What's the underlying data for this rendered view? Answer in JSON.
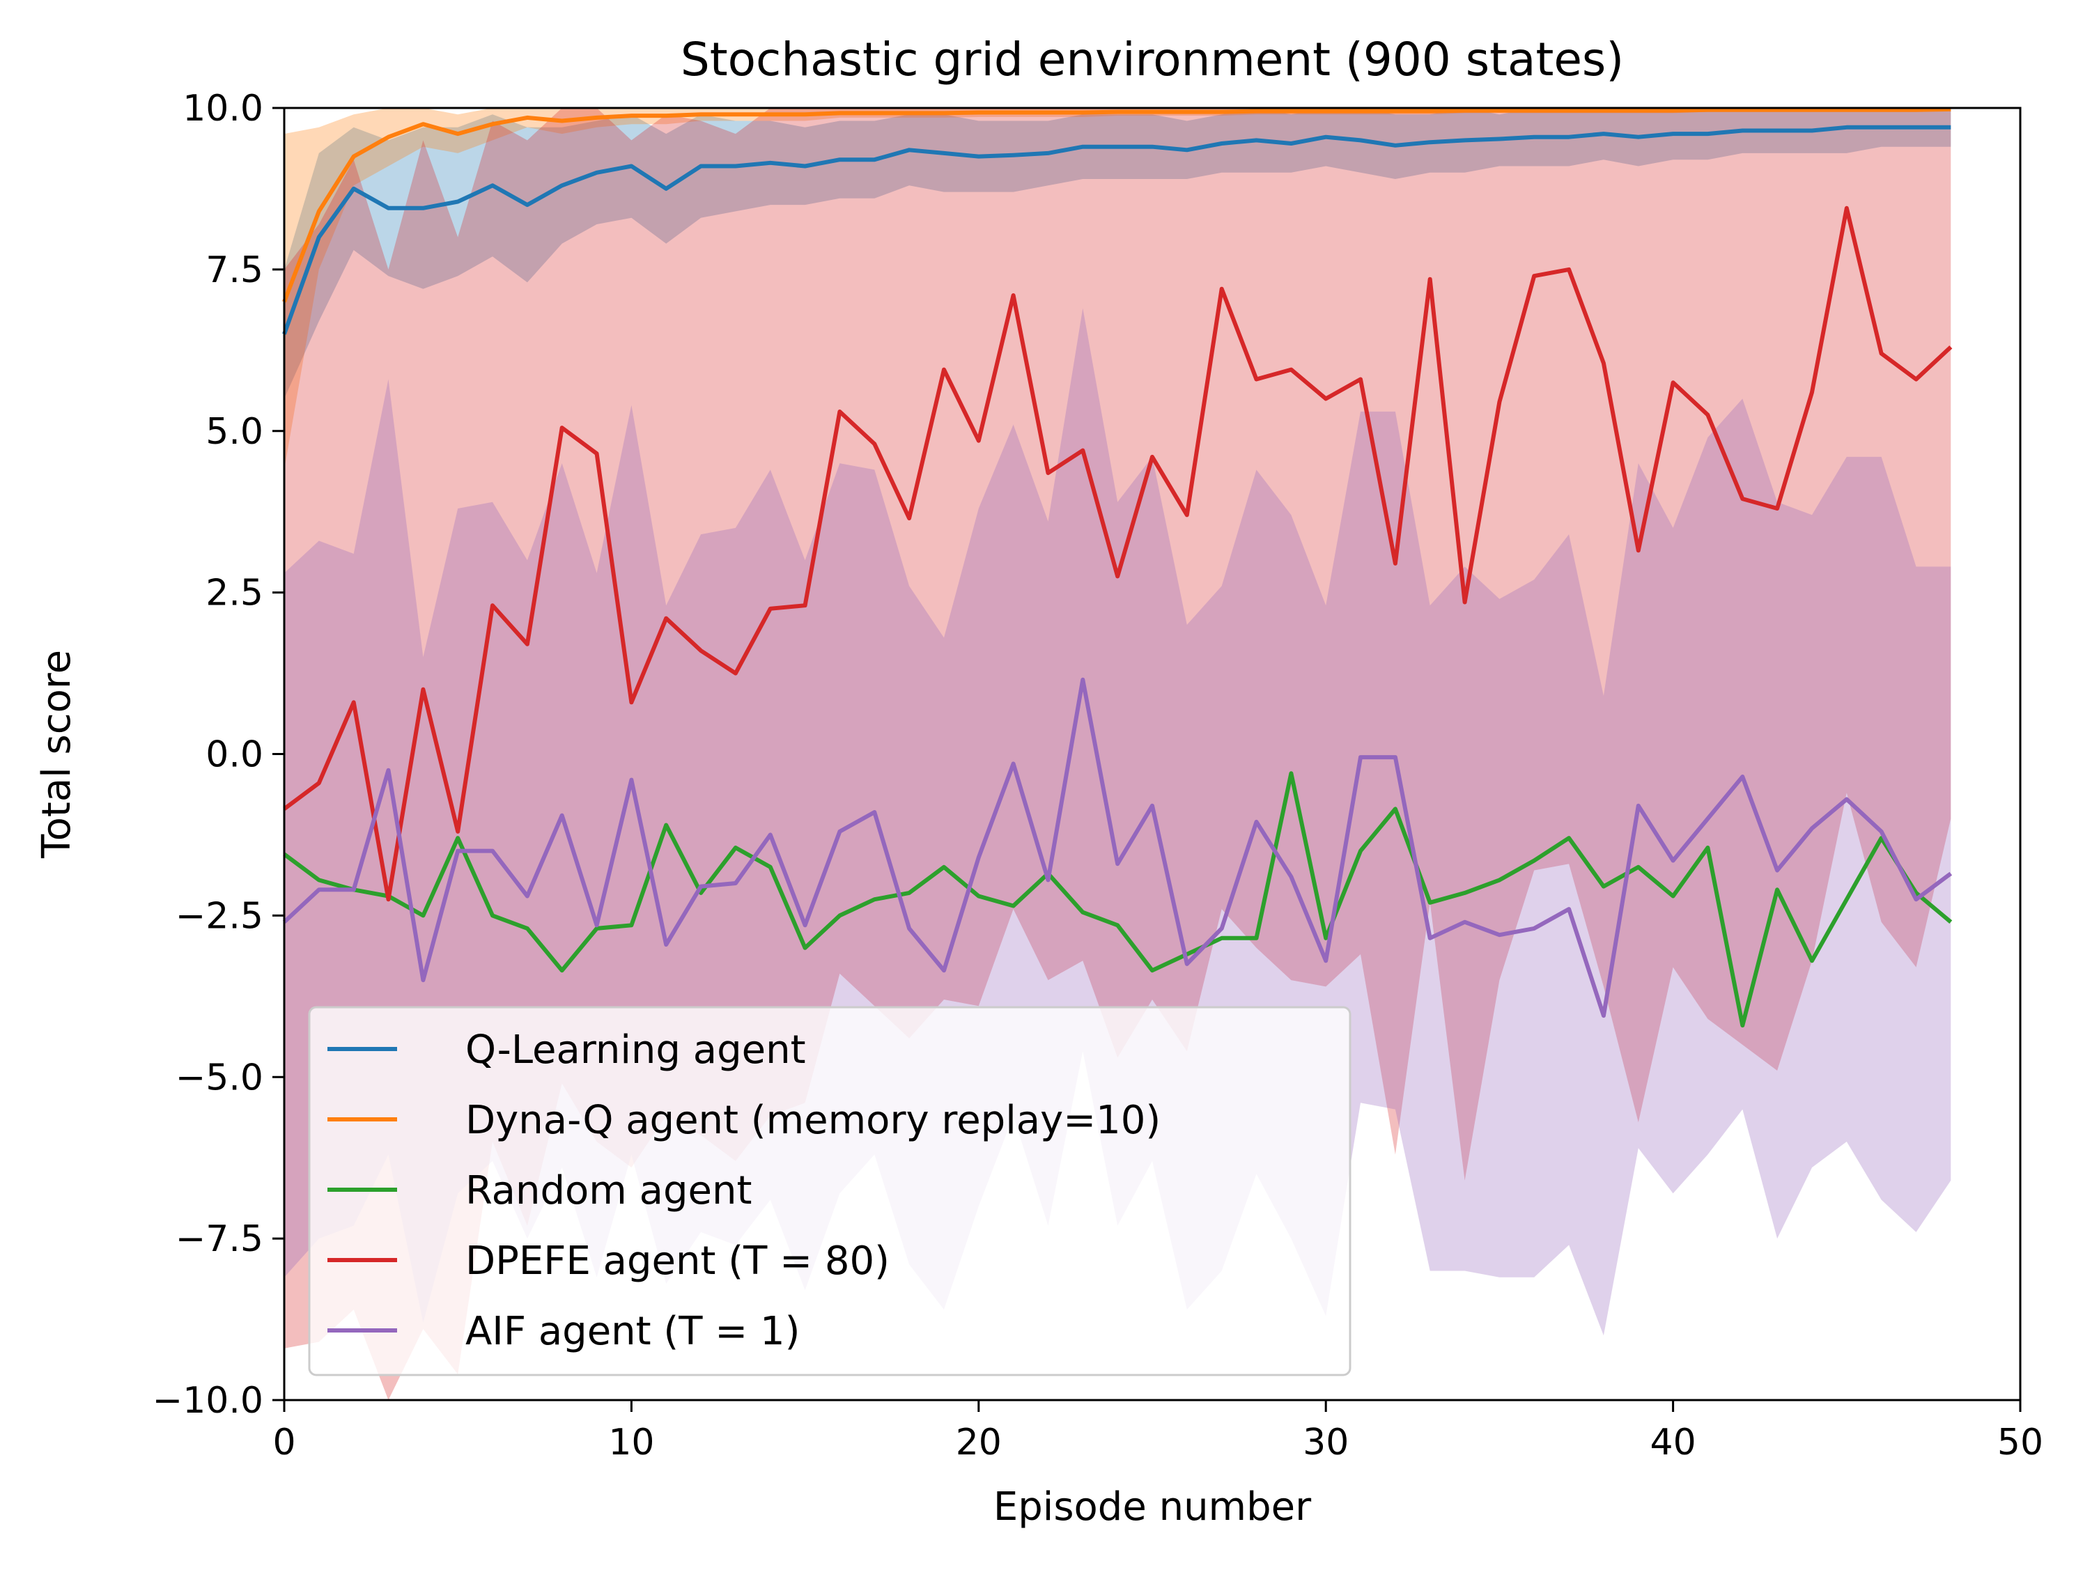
{
  "chart_data": {
    "type": "line",
    "title": "Stochastic grid environment (900 states)",
    "xlabel": "Episode number",
    "ylabel": "Total score",
    "xlim": [
      0,
      50
    ],
    "ylim": [
      -10,
      10
    ],
    "xticks": [
      0,
      10,
      20,
      30,
      40,
      50
    ],
    "xtick_labels": [
      "0",
      "10",
      "20",
      "30",
      "40",
      "50"
    ],
    "yticks": [
      -10,
      -7.5,
      -5,
      -2.5,
      0,
      2.5,
      5,
      7.5,
      10
    ],
    "ytick_labels": [
      "−10.0",
      "−7.5",
      "−5.0",
      "−2.5",
      "0.0",
      "2.5",
      "5.0",
      "7.5",
      "10.0"
    ],
    "grid": false,
    "legend_position": "lower-left",
    "x": [
      0,
      1,
      2,
      3,
      4,
      5,
      6,
      7,
      8,
      9,
      10,
      11,
      12,
      13,
      14,
      15,
      16,
      17,
      18,
      19,
      20,
      21,
      22,
      23,
      24,
      25,
      26,
      27,
      28,
      29,
      30,
      31,
      32,
      33,
      34,
      35,
      36,
      37,
      38,
      39,
      40,
      41,
      42,
      43,
      44,
      45,
      46,
      47,
      48
    ],
    "series": [
      {
        "name": "Q-Learning agent",
        "color": "#1f77b4",
        "values": [
          6.5,
          8.0,
          8.75,
          8.45,
          8.45,
          8.55,
          8.8,
          8.5,
          8.8,
          9.0,
          9.1,
          8.75,
          9.1,
          9.1,
          9.15,
          9.1,
          9.2,
          9.2,
          9.35,
          9.3,
          9.25,
          9.27,
          9.3,
          9.4,
          9.4,
          9.4,
          9.35,
          9.45,
          9.5,
          9.45,
          9.55,
          9.5,
          9.42,
          9.47,
          9.5,
          9.52,
          9.55,
          9.55,
          9.6,
          9.55,
          9.6,
          9.6,
          9.65,
          9.65,
          9.65,
          9.7,
          9.7,
          9.7,
          9.7
        ],
        "band_lower": [
          5.5,
          6.7,
          7.8,
          7.4,
          7.2,
          7.4,
          7.7,
          7.3,
          7.9,
          8.2,
          8.3,
          7.9,
          8.3,
          8.4,
          8.5,
          8.5,
          8.6,
          8.6,
          8.8,
          8.7,
          8.7,
          8.7,
          8.8,
          8.9,
          8.9,
          8.9,
          8.9,
          9.0,
          9.0,
          9.0,
          9.1,
          9.0,
          8.9,
          9.0,
          9.0,
          9.1,
          9.1,
          9.1,
          9.2,
          9.1,
          9.2,
          9.2,
          9.3,
          9.3,
          9.3,
          9.3,
          9.4,
          9.4,
          9.4
        ],
        "band_upper": [
          7.5,
          9.3,
          9.7,
          9.5,
          9.7,
          9.7,
          9.9,
          9.7,
          9.7,
          9.8,
          9.9,
          9.6,
          9.9,
          9.8,
          9.8,
          9.7,
          9.8,
          9.8,
          9.9,
          9.9,
          9.8,
          9.8,
          9.8,
          9.9,
          9.9,
          9.9,
          9.8,
          9.9,
          10.0,
          9.9,
          10.0,
          10.0,
          9.9,
          9.9,
          10.0,
          9.9,
          10.0,
          10.0,
          10.0,
          10.0,
          10.0,
          10.0,
          10.0,
          10.0,
          10.0,
          10.0,
          10.0,
          10.0,
          10.0
        ]
      },
      {
        "name": "Dyna-Q agent (memory replay=10)",
        "color": "#ff7f0e",
        "values": [
          7.0,
          8.4,
          9.25,
          9.55,
          9.75,
          9.6,
          9.75,
          9.85,
          9.8,
          9.85,
          9.88,
          9.88,
          9.9,
          9.9,
          9.9,
          9.9,
          9.92,
          9.92,
          9.92,
          9.92,
          9.93,
          9.93,
          9.93,
          9.93,
          9.94,
          9.94,
          9.94,
          9.94,
          9.95,
          9.95,
          9.95,
          9.95,
          9.95,
          9.95,
          9.96,
          9.96,
          9.96,
          9.96,
          9.96,
          9.96,
          9.96,
          9.97,
          9.97,
          9.97,
          9.97,
          9.97,
          9.97,
          9.97,
          9.98
        ],
        "band_lower": [
          4.4,
          7.5,
          8.8,
          9.1,
          9.4,
          9.3,
          9.5,
          9.7,
          9.6,
          9.7,
          9.75,
          9.75,
          9.8,
          9.8,
          9.8,
          9.8,
          9.85,
          9.85,
          9.85,
          9.85,
          9.86,
          9.86,
          9.86,
          9.86,
          9.88,
          9.88,
          9.88,
          9.88,
          9.9,
          9.9,
          9.9,
          9.9,
          9.9,
          9.9,
          9.92,
          9.92,
          9.92,
          9.92,
          9.92,
          9.92,
          9.92,
          9.94,
          9.94,
          9.94,
          9.94,
          9.94,
          9.94,
          9.94,
          9.96
        ],
        "band_upper": [
          9.6,
          9.7,
          9.9,
          10.0,
          10.0,
          9.9,
          10.0,
          10.0,
          10.0,
          10.0,
          10.0,
          10.0,
          10.0,
          10.0,
          10.0,
          10.0,
          10.0,
          10.0,
          10.0,
          10.0,
          10.0,
          10.0,
          10.0,
          10.0,
          10.0,
          10.0,
          10.0,
          10.0,
          10.0,
          10.0,
          10.0,
          10.0,
          10.0,
          10.0,
          10.0,
          10.0,
          10.0,
          10.0,
          10.0,
          10.0,
          10.0,
          10.0,
          10.0,
          10.0,
          10.0,
          10.0,
          10.0,
          10.0,
          10.0
        ]
      },
      {
        "name": "Random agent",
        "color": "#2ca02c",
        "values": [
          -1.55,
          -1.95,
          -2.1,
          -2.2,
          -2.5,
          -1.3,
          -2.5,
          -2.7,
          -3.35,
          -2.7,
          -2.65,
          -1.1,
          -2.15,
          -1.45,
          -1.75,
          -3.0,
          -2.5,
          -2.25,
          -2.15,
          -1.75,
          -2.2,
          -2.35,
          -1.85,
          -2.45,
          -2.65,
          -3.35,
          -3.1,
          -2.85,
          -2.85,
          -0.3,
          -2.85,
          -1.5,
          -0.85,
          -2.3,
          -2.15,
          -1.95,
          -1.65,
          -1.3,
          -2.05,
          -1.75,
          -2.2,
          -1.45,
          -4.2,
          -2.1,
          -3.2,
          -2.25,
          -1.3,
          -2.15,
          -2.6
        ],
        "band_lower": [],
        "band_upper": []
      },
      {
        "name": "DPEFE agent (T = 80)",
        "color": "#d62728",
        "values": [
          -0.85,
          -0.45,
          0.8,
          -2.25,
          1.0,
          -1.2,
          2.3,
          1.7,
          5.05,
          4.65,
          0.8,
          2.1,
          1.6,
          1.25,
          2.25,
          2.3,
          5.3,
          4.8,
          3.65,
          5.95,
          4.85,
          7.1,
          4.35,
          4.7,
          2.75,
          4.6,
          3.7,
          7.2,
          5.8,
          5.95,
          5.5,
          5.8,
          2.95,
          7.35,
          2.35,
          5.45,
          7.4,
          7.5,
          6.05,
          3.15,
          5.75,
          5.25,
          3.95,
          3.8,
          5.6,
          8.45,
          6.2,
          5.8,
          6.3
        ],
        "band_lower": [
          -9.2,
          -9.1,
          -8.6,
          -10.0,
          -8.9,
          -9.6,
          -6.0,
          -7.3,
          -5.1,
          -6.0,
          -6.4,
          -5.6,
          -5.9,
          -6.3,
          -5.6,
          -5.4,
          -3.4,
          -3.9,
          -4.4,
          -3.8,
          -3.9,
          -2.4,
          -3.5,
          -3.2,
          -4.7,
          -3.8,
          -4.6,
          -2.4,
          -3.0,
          -3.5,
          -3.6,
          -3.1,
          -6.2,
          -2.3,
          -6.6,
          -3.5,
          -1.8,
          -1.7,
          -3.6,
          -5.7,
          -3.3,
          -4.1,
          -4.5,
          -4.9,
          -3.2,
          -0.6,
          -2.6,
          -3.3,
          -1.0
        ],
        "band_upper": [
          7.5,
          8.2,
          9.2,
          7.5,
          9.5,
          8.0,
          9.8,
          9.5,
          10.0,
          10.0,
          9.5,
          9.9,
          9.8,
          9.6,
          10.0,
          10.0,
          10.0,
          10.0,
          10.0,
          10.0,
          10.0,
          10.0,
          10.0,
          10.0,
          10.0,
          10.0,
          10.0,
          10.0,
          10.0,
          10.0,
          10.0,
          10.0,
          10.0,
          10.0,
          10.0,
          10.0,
          10.0,
          10.0,
          10.0,
          10.0,
          10.0,
          10.0,
          10.0,
          10.0,
          10.0,
          10.0,
          10.0,
          10.0,
          10.0
        ]
      },
      {
        "name": "AIF agent (T = 1)",
        "color": "#9467bd",
        "values": [
          -2.6,
          -2.1,
          -2.1,
          -0.25,
          -3.5,
          -1.5,
          -1.5,
          -2.2,
          -0.95,
          -2.65,
          -0.4,
          -2.95,
          -2.05,
          -2.0,
          -1.25,
          -2.65,
          -1.2,
          -0.9,
          -2.7,
          -3.35,
          -1.6,
          -0.15,
          -1.95,
          1.15,
          -1.7,
          -0.8,
          -3.25,
          -2.7,
          -1.05,
          -1.9,
          -3.2,
          -0.05,
          -0.05,
          -2.85,
          -2.6,
          -2.8,
          -2.7,
          -2.4,
          -4.05,
          -0.8,
          -1.65,
          -1.0,
          -0.35,
          -1.8,
          -1.15,
          -0.7,
          -1.2,
          -2.25,
          -1.85
        ],
        "band_lower": [
          -8.1,
          -7.5,
          -7.3,
          -6.2,
          -8.8,
          -6.8,
          -6.3,
          -7.5,
          -6.4,
          -8.1,
          -6.2,
          -8.2,
          -7.4,
          -7.6,
          -6.9,
          -8.3,
          -6.8,
          -6.2,
          -7.9,
          -8.6,
          -7.0,
          -5.6,
          -7.3,
          -4.6,
          -7.3,
          -6.3,
          -8.6,
          -8.0,
          -6.5,
          -7.5,
          -8.7,
          -5.4,
          -5.5,
          -8.0,
          -8.0,
          -8.1,
          -8.1,
          -7.6,
          -9.0,
          -6.1,
          -6.8,
          -6.2,
          -5.5,
          -7.5,
          -6.4,
          -6.0,
          -6.9,
          -7.4,
          -6.6
        ],
        "band_upper": [
          2.8,
          3.3,
          3.1,
          5.8,
          1.5,
          3.8,
          3.9,
          3.0,
          4.5,
          2.8,
          5.4,
          2.3,
          3.4,
          3.5,
          4.4,
          3.0,
          4.5,
          4.4,
          2.6,
          1.8,
          3.8,
          5.1,
          3.6,
          6.9,
          3.9,
          4.6,
          2.0,
          2.6,
          4.4,
          3.7,
          2.3,
          5.3,
          5.3,
          2.3,
          2.9,
          2.4,
          2.7,
          3.4,
          0.9,
          4.5,
          3.5,
          4.9,
          5.5,
          3.9,
          3.7,
          4.6,
          4.6,
          2.9,
          2.9
        ]
      }
    ]
  }
}
